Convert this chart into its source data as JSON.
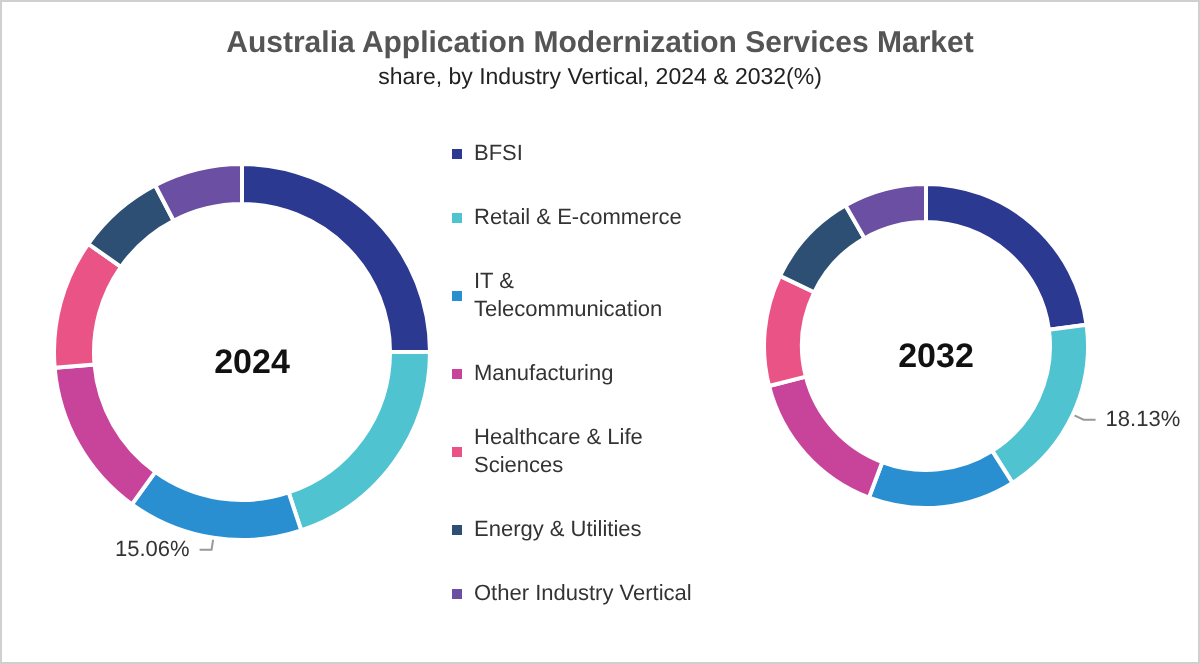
{
  "chart_data": {
    "type": "donut",
    "title": "Australia Application Modernization Services Market",
    "subtitle": "share, by Industry Vertical, 2024 & 2032(%)",
    "categories": [
      "BFSI",
      "Retail & E-commerce",
      "IT & Telecommunication",
      "Manufacturing",
      "Healthcare & Life Sciences",
      "Energy & Utilities",
      "Other Industry Vertical"
    ],
    "colors": [
      "#2b3990",
      "#4fc3d0",
      "#2a8fd0",
      "#c8449a",
      "#ea5386",
      "#2d4f73",
      "#6a4fa3"
    ],
    "series": [
      {
        "name": "2024",
        "values": [
          25.0,
          19.9,
          15.06,
          13.7,
          11.1,
          7.6,
          7.64
        ],
        "value_labels": [
          null,
          null,
          "15.06%",
          null,
          null,
          null,
          null
        ]
      },
      {
        "name": "2032",
        "values": [
          22.9,
          18.13,
          14.7,
          15.3,
          11.1,
          9.6,
          8.27
        ],
        "value_labels": [
          null,
          "18.13%",
          null,
          null,
          null,
          null,
          null
        ]
      }
    ],
    "legend": "center"
  }
}
